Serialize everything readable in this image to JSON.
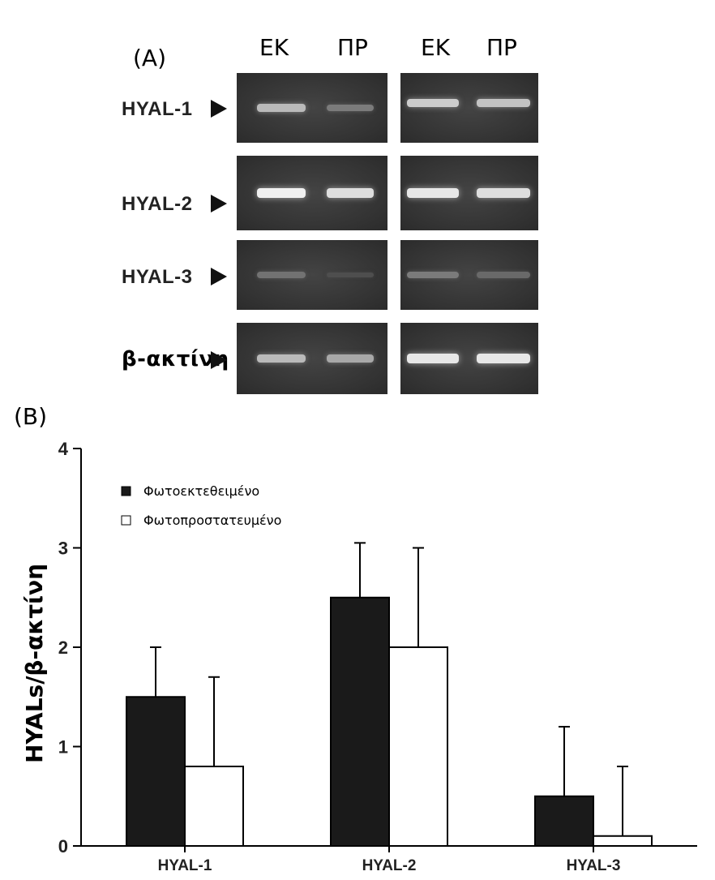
{
  "panel_a": {
    "label": "(A)",
    "lanes_left": [
      "ΕΚ",
      "ΠΡ"
    ],
    "lanes_right": [
      "ΕΚ",
      "ΠΡ"
    ],
    "rows": [
      {
        "label": "HYAL-1",
        "left_bands": [
          0.7,
          0.35
        ],
        "right_bands": [
          0.8,
          0.75
        ]
      },
      {
        "label": "HYAL-2",
        "left_bands": [
          1.0,
          0.9
        ],
        "right_bands": [
          0.95,
          0.9
        ]
      },
      {
        "label": "HYAL-3",
        "left_bands": [
          0.3,
          0.1
        ],
        "right_bands": [
          0.35,
          0.25
        ]
      },
      {
        "label": "β-ακτίνη",
        "left_bands": [
          0.7,
          0.6
        ],
        "right_bands": [
          0.95,
          0.95
        ]
      }
    ]
  },
  "panel_b": {
    "label": "(B)"
  },
  "chart_data": {
    "type": "bar",
    "categories": [
      "HYAL-1",
      "HYAL-2",
      "HYAL-3"
    ],
    "series": [
      {
        "name": "Φωτοεκτεθειμένο",
        "values": [
          1.5,
          2.5,
          0.5
        ],
        "errors": [
          0.5,
          0.55,
          0.7
        ],
        "color": "#1a1a1a"
      },
      {
        "name": "Φωτοπροστατευμένο",
        "values": [
          0.8,
          2.0,
          0.1
        ],
        "errors": [
          0.9,
          1.0,
          0.7
        ],
        "color": "#ffffff"
      }
    ],
    "ylabel": "HYALs/β-ακτίνη",
    "yticks": [
      "0",
      "1",
      "2",
      "3",
      "4"
    ],
    "ylim": [
      0,
      4
    ],
    "legend_position": "top-left",
    "grid": false
  }
}
